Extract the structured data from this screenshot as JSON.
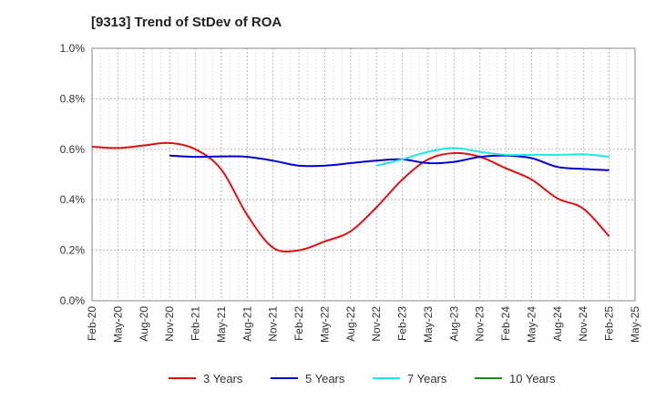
{
  "chart_data": {
    "type": "line",
    "title": "[9313]  Trend of StDev of ROA",
    "x_labels": [
      "Feb-20",
      "May-20",
      "Aug-20",
      "Nov-20",
      "Feb-21",
      "May-21",
      "Aug-21",
      "Nov-21",
      "Feb-22",
      "May-22",
      "Aug-22",
      "Nov-22",
      "Feb-23",
      "May-23",
      "Aug-23",
      "Nov-23",
      "Feb-24",
      "May-24",
      "Aug-24",
      "Nov-24",
      "Feb-25",
      "May-25"
    ],
    "y_ticks": [
      "0.0%",
      "0.2%",
      "0.4%",
      "0.6%",
      "0.8%",
      "1.0%"
    ],
    "ylim": [
      0,
      1.0
    ],
    "y_unit": "%",
    "grid": true,
    "legend_position": "bottom",
    "series": [
      {
        "name": "3 Years",
        "color": "#dd1111",
        "points": [
          [
            "Feb-20",
            0.61
          ],
          [
            "May-20",
            0.605
          ],
          [
            "Aug-20",
            0.615
          ],
          [
            "Nov-20",
            0.625
          ],
          [
            "Feb-21",
            0.6
          ],
          [
            "May-21",
            0.52
          ],
          [
            "Aug-21",
            0.34
          ],
          [
            "Nov-21",
            0.21
          ],
          [
            "Feb-22",
            0.2
          ],
          [
            "May-22",
            0.235
          ],
          [
            "Aug-22",
            0.275
          ],
          [
            "Nov-22",
            0.37
          ],
          [
            "Feb-23",
            0.48
          ],
          [
            "May-23",
            0.56
          ],
          [
            "Aug-23",
            0.585
          ],
          [
            "Nov-23",
            0.57
          ],
          [
            "Feb-24",
            0.525
          ],
          [
            "May-24",
            0.48
          ],
          [
            "Aug-24",
            0.405
          ],
          [
            "Nov-24",
            0.365
          ],
          [
            "Feb-25",
            0.255
          ]
        ]
      },
      {
        "name": "5 Years",
        "color": "#0000cc",
        "points": [
          [
            "Nov-20",
            0.575
          ],
          [
            "Feb-21",
            0.57
          ],
          [
            "May-21",
            0.572
          ],
          [
            "Aug-21",
            0.57
          ],
          [
            "Nov-21",
            0.555
          ],
          [
            "Feb-22",
            0.535
          ],
          [
            "May-22",
            0.535
          ],
          [
            "Aug-22",
            0.545
          ],
          [
            "Nov-22",
            0.555
          ],
          [
            "Feb-23",
            0.56
          ],
          [
            "May-23",
            0.545
          ],
          [
            "Aug-23",
            0.55
          ],
          [
            "Nov-23",
            0.57
          ],
          [
            "Feb-24",
            0.575
          ],
          [
            "May-24",
            0.565
          ],
          [
            "Aug-24",
            0.53
          ],
          [
            "Nov-24",
            0.522
          ],
          [
            "Feb-25",
            0.517
          ]
        ]
      },
      {
        "name": "7 Years",
        "color": "#22e6e6",
        "points": [
          [
            "Nov-22",
            0.535
          ],
          [
            "Feb-23",
            0.56
          ],
          [
            "May-23",
            0.59
          ],
          [
            "Aug-23",
            0.605
          ],
          [
            "Nov-23",
            0.59
          ],
          [
            "Feb-24",
            0.578
          ],
          [
            "May-24",
            0.578
          ],
          [
            "Aug-24",
            0.578
          ],
          [
            "Nov-24",
            0.58
          ],
          [
            "Feb-25",
            0.57
          ]
        ]
      },
      {
        "name": "10 Years",
        "color": "#228822",
        "points": []
      }
    ]
  }
}
